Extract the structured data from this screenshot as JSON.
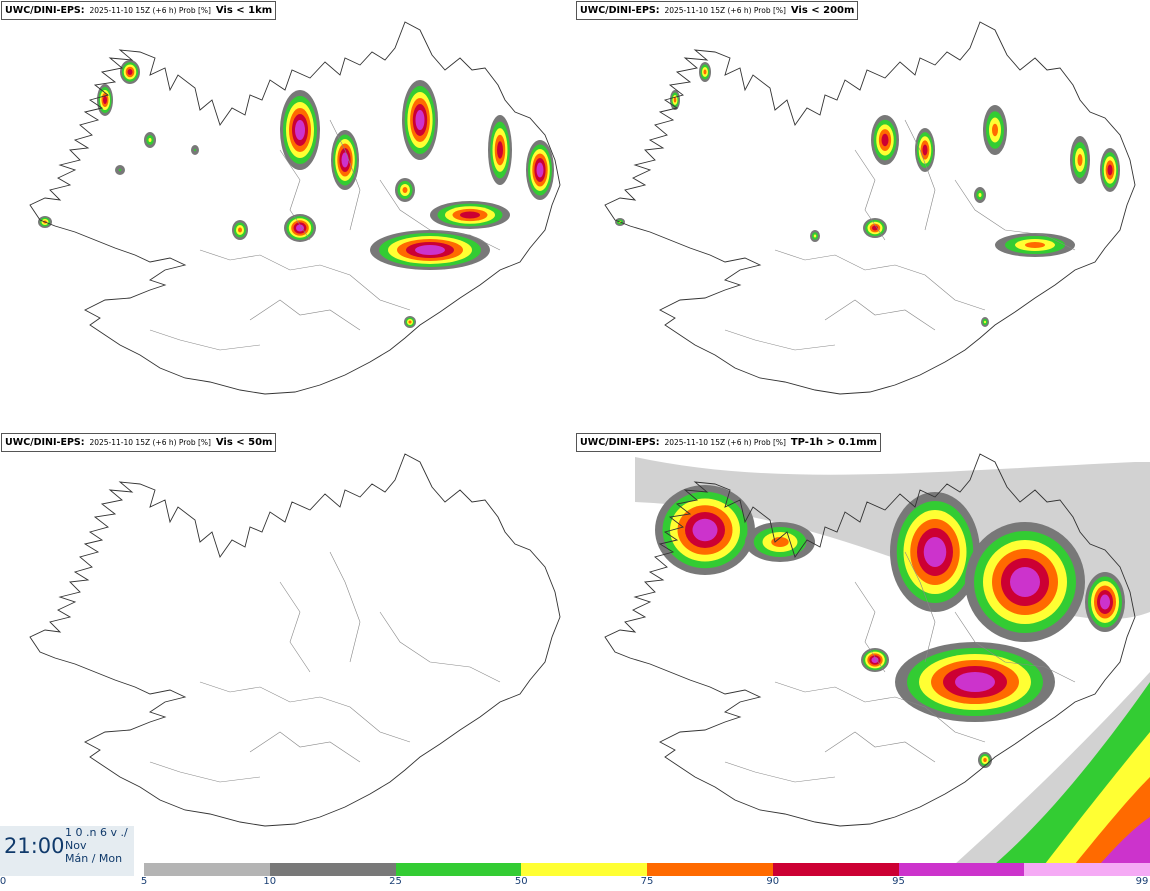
{
  "panels": [
    {
      "model": "UWC/DINI-EPS:",
      "run": "2025-11-10 15Z (+6 h) Prob [%]",
      "variable": "Vis < 1km"
    },
    {
      "model": "UWC/DINI-EPS:",
      "run": "2025-11-10 15Z (+6 h) Prob [%]",
      "variable": "Vis < 200m"
    },
    {
      "model": "UWC/DINI-EPS:",
      "run": "2025-11-10 15Z (+6 h) Prob [%]",
      "variable": "Vis < 50m"
    },
    {
      "model": "UWC/DINI-EPS:",
      "run": "2025-11-10 15Z (+6 h) Prob [%]",
      "variable": "TP-1h > 0.1mm"
    }
  ],
  "time_label": {
    "time": "21:00",
    "line1": "1 0 .n 6 v ./",
    "line2": "Nov",
    "line3": "Mán / Mon"
  },
  "colorbar": {
    "ticks": [
      "0",
      "5",
      "10",
      "25",
      "50",
      "75",
      "90",
      "95",
      "99"
    ],
    "colors": [
      "#b4b4b4",
      "#787878",
      "#33cc33",
      "#ffff33",
      "#ff6a00",
      "#cc0033",
      "#cc33cc",
      "#f5aaf5"
    ]
  }
}
